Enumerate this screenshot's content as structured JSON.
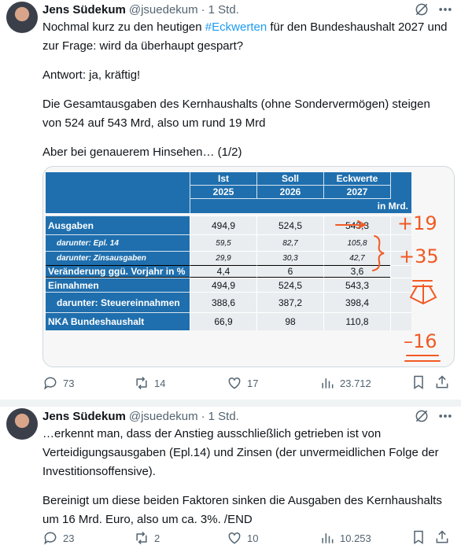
{
  "tweets": [
    {
      "author": "Jens Südekum",
      "handle": "@jsuedekum",
      "time": "1 Std.",
      "paragraphs": [
        [
          "Nochmal kurz zu den heutigen ",
          "#Eckwerten",
          " für den Bundeshaushalt 2027 und zur Frage: wird da überhaupt gespart?"
        ],
        [
          "Antwort: ja, kräftig!"
        ],
        [
          "Die Gesamtausgaben des Kernhaushalts (ohne Sondervermögen) steigen von 524 auf 543 Mrd, also um rund 19 Mrd"
        ],
        [
          "Aber bei genauerem Hinsehen… (1/2)"
        ]
      ],
      "image": {
        "table": {
          "header": [
            [
              "Ist",
              "2025"
            ],
            [
              "Soll",
              "2026"
            ],
            [
              "Eckwerte",
              "2027"
            ]
          ],
          "unit": "in Mrd.",
          "rows": [
            [
              "Ausgaben",
              "494,9",
              "524,5",
              "543,3"
            ],
            [
              "darunter: Epl. 14",
              "59,5",
              "82,7",
              "105,8"
            ],
            [
              "darunter: Zinsausgaben",
              "29,9",
              "30,3",
              "42,7"
            ],
            [
              "Veränderung ggü. Vorjahr in %",
              "4,4",
              "6",
              "3,6"
            ],
            [
              "Einnahmen",
              "494,9",
              "524,5",
              "543,3"
            ],
            [
              "darunter: Steuereinnahmen",
              "388,6",
              "387,2",
              "398,4"
            ],
            [
              "NKA Bundeshaushalt",
              "66,9",
              "98",
              "110,8"
            ]
          ]
        },
        "annotations": [
          "+19",
          "+35",
          "–16"
        ]
      },
      "stats": {
        "replies": "73",
        "reposts": "14",
        "likes": "17",
        "views": "23.712"
      }
    },
    {
      "author": "Jens Südekum",
      "handle": "@jsuedekum",
      "time": "1 Std.",
      "paragraphs": [
        [
          "…erkennt man, dass der Anstieg ausschließlich getrieben ist von Verteidigungsausgaben (Epl.14) und Zinsen (der unvermeidlichen Folge der Investitionsoffensive)."
        ],
        [
          "Bereinigt um diese beiden Faktoren sinken die Ausgaben des Kernhaushalts um 16 Mrd. Euro, also um ca. 3%.  /END"
        ]
      ],
      "stats": {
        "replies": "23",
        "reposts": "2",
        "likes": "10",
        "views": "10.253"
      }
    }
  ]
}
